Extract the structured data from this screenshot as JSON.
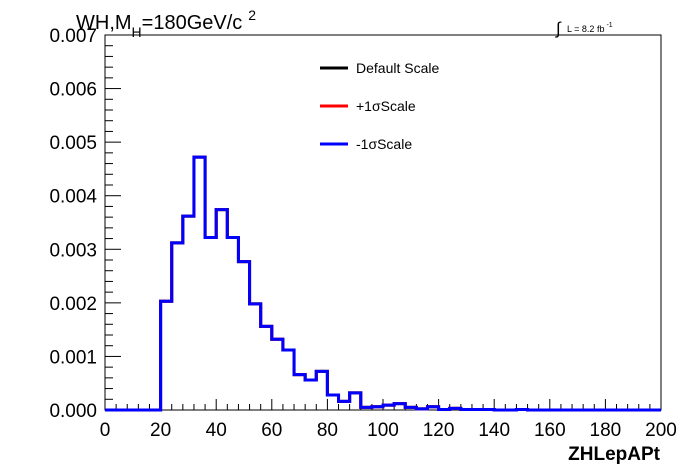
{
  "chart_data": {
    "type": "line",
    "title_parts": {
      "main": "WH,M",
      "sub": "H",
      "rest": "=180GeV/c",
      "sup": "2"
    },
    "lumi_label": {
      "integral": "∫",
      "text": "L = 8.2 fb",
      "sup": "-1"
    },
    "xlabel": "ZHLepAPt",
    "ylabel": "",
    "xlim": [
      0,
      200
    ],
    "ylim": [
      0,
      0.007
    ],
    "x_ticks": [
      "0",
      "20",
      "40",
      "60",
      "80",
      "100",
      "120",
      "140",
      "160",
      "180",
      "200"
    ],
    "y_ticks": [
      "0.000",
      "0.001",
      "0.002",
      "0.003",
      "0.004",
      "0.005",
      "0.006",
      "0.007"
    ],
    "bin_edges": [
      0,
      4,
      8,
      12,
      16,
      20,
      24,
      28,
      32,
      36,
      40,
      44,
      48,
      52,
      56,
      60,
      64,
      68,
      72,
      76,
      80,
      84,
      88,
      92,
      96,
      100,
      104,
      108,
      112,
      116,
      120,
      124,
      128,
      132,
      136,
      140,
      144,
      148,
      152,
      156,
      160,
      164,
      168,
      172,
      176,
      180,
      184,
      188,
      192,
      196,
      200
    ],
    "series": [
      {
        "name": "Default Scale",
        "color": "#000000",
        "values": [
          0,
          0,
          0,
          0,
          0,
          0.00203,
          0.00312,
          0.00362,
          0.00472,
          0.00322,
          0.00374,
          0.00322,
          0.00277,
          0.00198,
          0.00156,
          0.00132,
          0.00112,
          0.00066,
          0.00056,
          0.00072,
          0.00028,
          0.00016,
          0.00032,
          5e-05,
          6e-05,
          9e-05,
          0.00012,
          5e-05,
          2e-05,
          6e-05,
          1e-05,
          3e-05,
          1e-05,
          1e-05,
          1e-05,
          0.0,
          0.0,
          1e-05,
          0,
          0,
          0,
          0,
          0,
          0,
          0,
          0,
          0,
          0,
          0,
          0
        ]
      },
      {
        "name": "+1σScale",
        "color": "#ff0000",
        "values": [
          0,
          0,
          0,
          0,
          0,
          0.00203,
          0.00312,
          0.00362,
          0.00472,
          0.00322,
          0.00374,
          0.00322,
          0.00277,
          0.00198,
          0.00156,
          0.00132,
          0.00112,
          0.00066,
          0.00056,
          0.00072,
          0.00028,
          0.00016,
          0.00032,
          5e-05,
          6e-05,
          9e-05,
          0.00012,
          5e-05,
          2e-05,
          6e-05,
          1e-05,
          3e-05,
          1e-05,
          1e-05,
          1e-05,
          0.0,
          0.0,
          1e-05,
          0,
          0,
          0,
          0,
          0,
          0,
          0,
          0,
          0,
          0,
          0,
          0
        ]
      },
      {
        "name": "-1σScale",
        "color": "#0000ff",
        "values": [
          0,
          0,
          0,
          0,
          0,
          0.00203,
          0.00312,
          0.00362,
          0.00472,
          0.00322,
          0.00374,
          0.00322,
          0.00277,
          0.00198,
          0.00156,
          0.00132,
          0.00112,
          0.00066,
          0.00056,
          0.00072,
          0.00028,
          0.00016,
          0.00032,
          5e-05,
          6e-05,
          9e-05,
          0.00012,
          5e-05,
          2e-05,
          6e-05,
          1e-05,
          3e-05,
          1e-05,
          1e-05,
          1e-05,
          0.0,
          0.0,
          1e-05,
          0,
          0,
          0,
          0,
          0,
          0,
          0,
          0,
          0,
          0,
          0,
          0
        ]
      }
    ],
    "legend_position": "top-center",
    "grid": false
  }
}
